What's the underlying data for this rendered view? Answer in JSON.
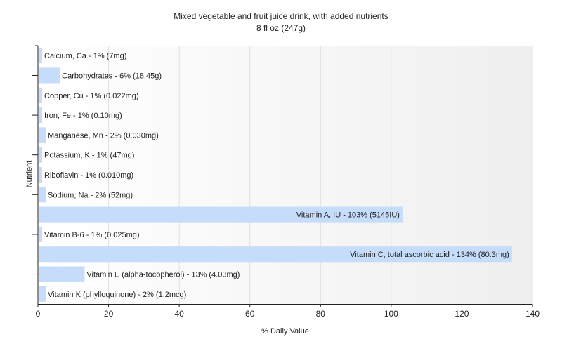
{
  "chart_data": {
    "type": "bar",
    "orientation": "horizontal",
    "title": "Mixed vegetable and fruit juice drink, with added nutrients",
    "subtitle": "8 fl oz (247g)",
    "xlabel": "% Daily Value",
    "ylabel": "Nutrient",
    "xlim": [
      0,
      140
    ],
    "xticks": [
      0,
      20,
      40,
      60,
      80,
      100,
      120,
      140
    ],
    "grid": true,
    "bar_color": "#c6dcfb",
    "bars": [
      {
        "label": "Calcium, Ca - 1% (7mg)",
        "value": 1
      },
      {
        "label": "Carbohydrates - 6% (18.45g)",
        "value": 6
      },
      {
        "label": "Copper, Cu - 1% (0.022mg)",
        "value": 1
      },
      {
        "label": "Iron, Fe - 1% (0.10mg)",
        "value": 1
      },
      {
        "label": "Manganese, Mn - 2% (0.030mg)",
        "value": 2
      },
      {
        "label": "Potassium, K - 1% (47mg)",
        "value": 1
      },
      {
        "label": "Riboflavin - 1% (0.010mg)",
        "value": 1
      },
      {
        "label": "Sodium, Na - 2% (52mg)",
        "value": 2
      },
      {
        "label": "Vitamin A, IU - 103% (5145IU)",
        "value": 103
      },
      {
        "label": "Vitamin B-6 - 1% (0.025mg)",
        "value": 1
      },
      {
        "label": "Vitamin C, total ascorbic acid - 134% (80.3mg)",
        "value": 134
      },
      {
        "label": "Vitamin E (alpha-tocopherol) - 13% (4.03mg)",
        "value": 13
      },
      {
        "label": "Vitamin K (phylloquinone) - 2% (1.2mcg)",
        "value": 2
      }
    ]
  }
}
